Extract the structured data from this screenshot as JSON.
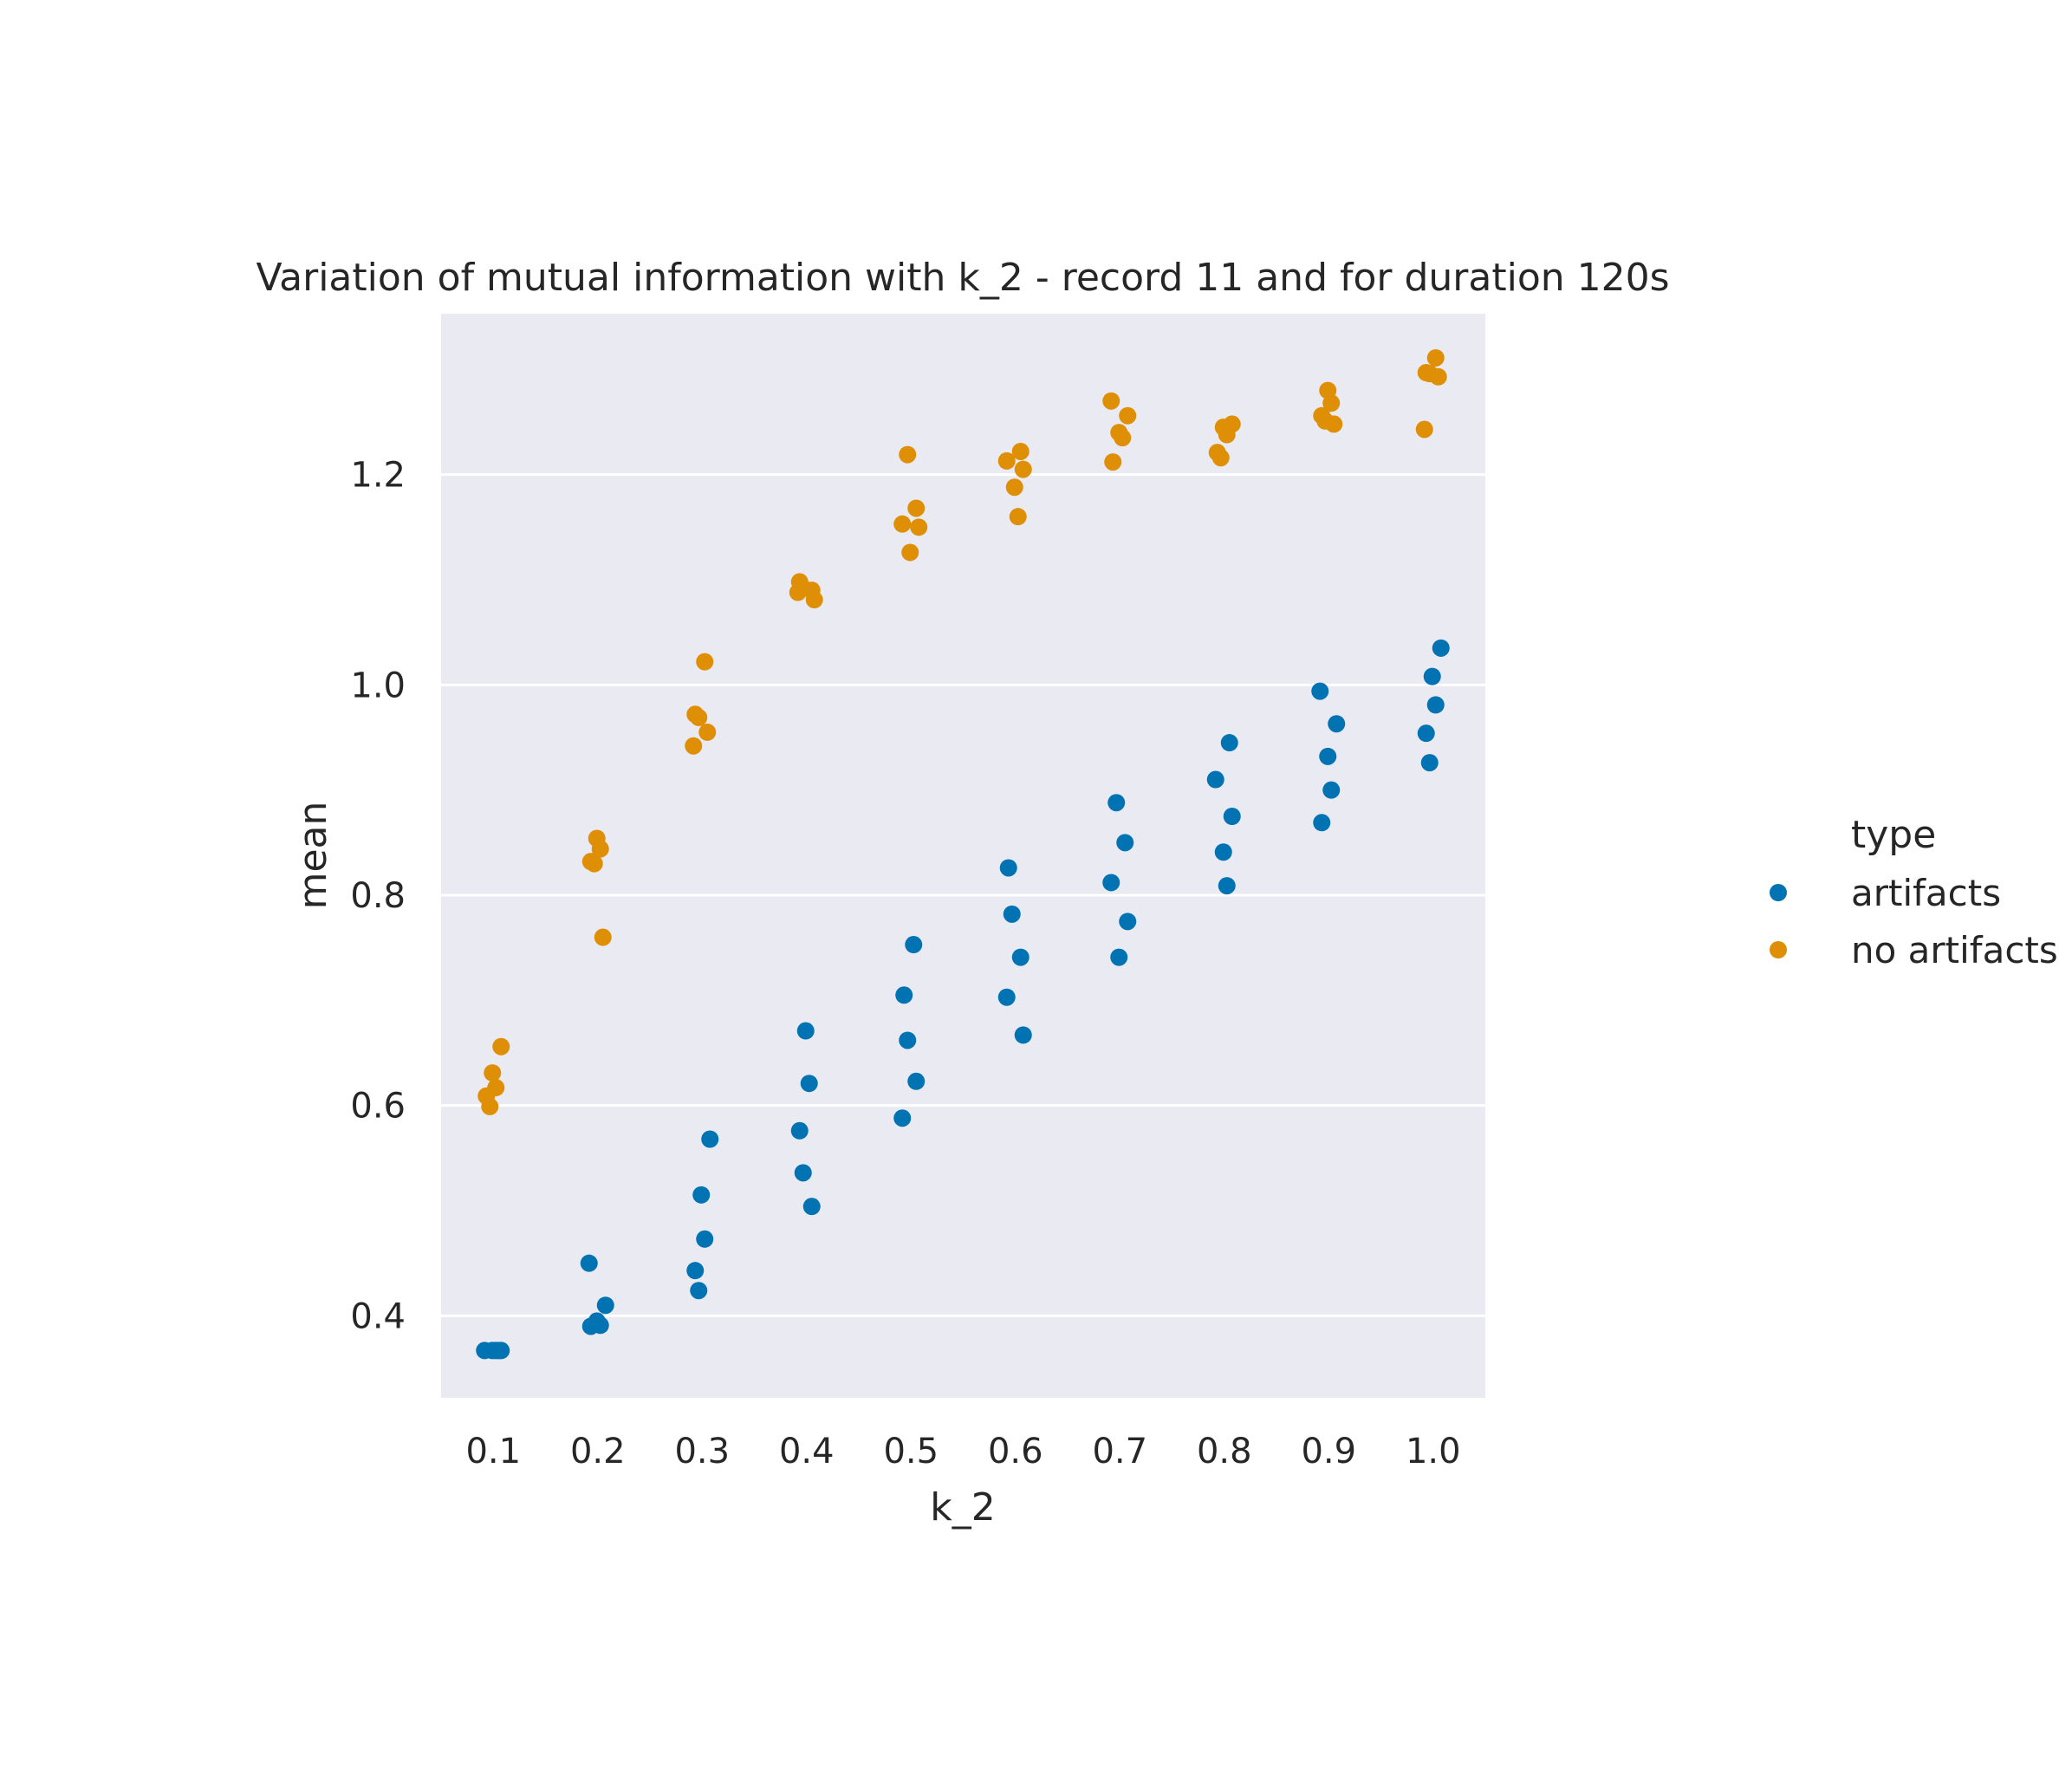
{
  "chart_data": {
    "type": "scatter",
    "title": "Variation of mutual information with k_2 - record 11 and for duration 120s",
    "xlabel": "k_2",
    "ylabel": "mean",
    "categories": [
      "0.1",
      "0.2",
      "0.3",
      "0.4",
      "0.5",
      "0.6",
      "0.7",
      "0.8",
      "0.9",
      "1.0"
    ],
    "yticks": [
      "0.4",
      "0.6",
      "0.8",
      "1.0",
      "1.2"
    ],
    "ylim": [
      0.322,
      1.353
    ],
    "grid": true,
    "legend": {
      "title": "type",
      "placement": "right"
    },
    "series": [
      {
        "name": "artifacts",
        "color": "#0173b2",
        "points": [
          {
            "x": 0.1,
            "y": 0.367
          },
          {
            "x": 0.1,
            "y": 0.367
          },
          {
            "x": 0.1,
            "y": 0.367
          },
          {
            "x": 0.1,
            "y": 0.367
          },
          {
            "x": 0.1,
            "y": 0.367
          },
          {
            "x": 0.2,
            "y": 0.45
          },
          {
            "x": 0.2,
            "y": 0.41
          },
          {
            "x": 0.2,
            "y": 0.395
          },
          {
            "x": 0.2,
            "y": 0.391
          },
          {
            "x": 0.2,
            "y": 0.39
          },
          {
            "x": 0.3,
            "y": 0.568
          },
          {
            "x": 0.3,
            "y": 0.515
          },
          {
            "x": 0.3,
            "y": 0.473
          },
          {
            "x": 0.3,
            "y": 0.443
          },
          {
            "x": 0.3,
            "y": 0.424
          },
          {
            "x": 0.4,
            "y": 0.671
          },
          {
            "x": 0.4,
            "y": 0.621
          },
          {
            "x": 0.4,
            "y": 0.576
          },
          {
            "x": 0.4,
            "y": 0.536
          },
          {
            "x": 0.4,
            "y": 0.504
          },
          {
            "x": 0.5,
            "y": 0.753
          },
          {
            "x": 0.5,
            "y": 0.705
          },
          {
            "x": 0.5,
            "y": 0.662
          },
          {
            "x": 0.5,
            "y": 0.623
          },
          {
            "x": 0.5,
            "y": 0.588
          },
          {
            "x": 0.6,
            "y": 0.826
          },
          {
            "x": 0.6,
            "y": 0.782
          },
          {
            "x": 0.6,
            "y": 0.741
          },
          {
            "x": 0.6,
            "y": 0.703
          },
          {
            "x": 0.6,
            "y": 0.667
          },
          {
            "x": 0.7,
            "y": 0.888
          },
          {
            "x": 0.7,
            "y": 0.85
          },
          {
            "x": 0.7,
            "y": 0.812
          },
          {
            "x": 0.7,
            "y": 0.775
          },
          {
            "x": 0.7,
            "y": 0.741
          },
          {
            "x": 0.8,
            "y": 0.945
          },
          {
            "x": 0.8,
            "y": 0.91
          },
          {
            "x": 0.8,
            "y": 0.875
          },
          {
            "x": 0.8,
            "y": 0.841
          },
          {
            "x": 0.8,
            "y": 0.809
          },
          {
            "x": 0.9,
            "y": 0.994
          },
          {
            "x": 0.9,
            "y": 0.963
          },
          {
            "x": 0.9,
            "y": 0.932
          },
          {
            "x": 0.9,
            "y": 0.9
          },
          {
            "x": 0.9,
            "y": 0.869
          },
          {
            "x": 1.0,
            "y": 1.035
          },
          {
            "x": 1.0,
            "y": 1.008
          },
          {
            "x": 1.0,
            "y": 0.981
          },
          {
            "x": 1.0,
            "y": 0.954
          },
          {
            "x": 1.0,
            "y": 0.926
          }
        ]
      },
      {
        "name": "no artifacts",
        "color": "#de8f05",
        "points": [
          {
            "x": 0.1,
            "y": 0.656
          },
          {
            "x": 0.1,
            "y": 0.631
          },
          {
            "x": 0.1,
            "y": 0.617
          },
          {
            "x": 0.1,
            "y": 0.609
          },
          {
            "x": 0.1,
            "y": 0.599
          },
          {
            "x": 0.2,
            "y": 0.854
          },
          {
            "x": 0.2,
            "y": 0.844
          },
          {
            "x": 0.2,
            "y": 0.832
          },
          {
            "x": 0.2,
            "y": 0.83
          },
          {
            "x": 0.2,
            "y": 0.76
          },
          {
            "x": 0.3,
            "y": 1.022
          },
          {
            "x": 0.3,
            "y": 0.972
          },
          {
            "x": 0.3,
            "y": 0.969
          },
          {
            "x": 0.3,
            "y": 0.955
          },
          {
            "x": 0.3,
            "y": 0.942
          },
          {
            "x": 0.4,
            "y": 1.098
          },
          {
            "x": 0.4,
            "y": 1.092
          },
          {
            "x": 0.4,
            "y": 1.09
          },
          {
            "x": 0.4,
            "y": 1.088
          },
          {
            "x": 0.4,
            "y": 1.081
          },
          {
            "x": 0.5,
            "y": 1.219
          },
          {
            "x": 0.5,
            "y": 1.168
          },
          {
            "x": 0.5,
            "y": 1.153
          },
          {
            "x": 0.5,
            "y": 1.15
          },
          {
            "x": 0.5,
            "y": 1.126
          },
          {
            "x": 0.6,
            "y": 1.222
          },
          {
            "x": 0.6,
            "y": 1.213
          },
          {
            "x": 0.6,
            "y": 1.205
          },
          {
            "x": 0.6,
            "y": 1.188
          },
          {
            "x": 0.6,
            "y": 1.16
          },
          {
            "x": 0.7,
            "y": 1.27
          },
          {
            "x": 0.7,
            "y": 1.256
          },
          {
            "x": 0.7,
            "y": 1.24
          },
          {
            "x": 0.7,
            "y": 1.235
          },
          {
            "x": 0.7,
            "y": 1.212
          },
          {
            "x": 0.8,
            "y": 1.248
          },
          {
            "x": 0.8,
            "y": 1.245
          },
          {
            "x": 0.8,
            "y": 1.238
          },
          {
            "x": 0.8,
            "y": 1.221
          },
          {
            "x": 0.8,
            "y": 1.216
          },
          {
            "x": 0.9,
            "y": 1.28
          },
          {
            "x": 0.9,
            "y": 1.268
          },
          {
            "x": 0.9,
            "y": 1.256
          },
          {
            "x": 0.9,
            "y": 1.251
          },
          {
            "x": 0.9,
            "y": 1.248
          },
          {
            "x": 1.0,
            "y": 1.311
          },
          {
            "x": 1.0,
            "y": 1.297
          },
          {
            "x": 1.0,
            "y": 1.296
          },
          {
            "x": 1.0,
            "y": 1.293
          },
          {
            "x": 1.0,
            "y": 1.243
          }
        ]
      }
    ]
  }
}
